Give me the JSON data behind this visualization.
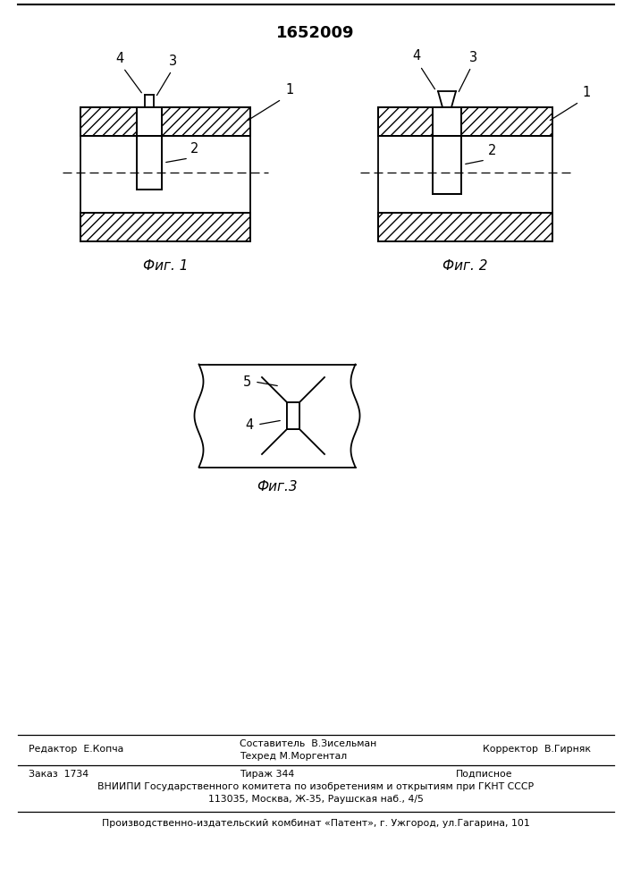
{
  "patent_number": "1652009",
  "fig1_caption": "Фиг. 1",
  "fig2_caption": "Фиг. 2",
  "fig3_caption": "Фиг.3",
  "footer_editor": "Редактор  Е.Копча",
  "footer_comp": "Составитель  В.Зисельман",
  "footer_tech": "Техред М.Моргентал",
  "footer_corr": "Корректор  В.Гирняк",
  "footer_order": "Заказ  1734",
  "footer_tirazh": "Тираж 344",
  "footer_podp": "Подписное",
  "footer_vniip": "ВНИИПИ Государственного комитета по изобретениям и открытиям при ГКНТ СССР",
  "footer_addr": "113035, Москва, Ж-35, Раушская наб., 4/5",
  "footer_patent": "Производственно-издательский комбинат «Патент», г. Ужгород, ул.Гагарина, 101",
  "bg_color": "#ffffff",
  "line_color": "#000000"
}
